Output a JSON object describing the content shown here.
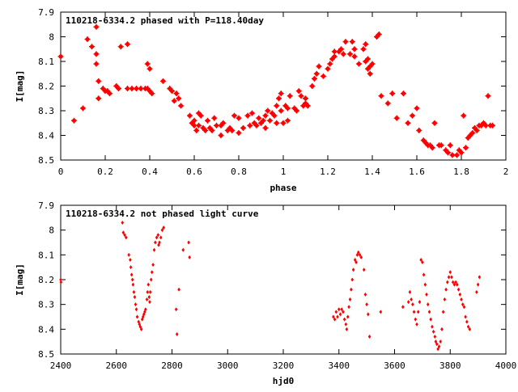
{
  "colors": {
    "marker": "#ff0000",
    "axis": "#000000",
    "background": "#ffffff"
  },
  "chart_data": [
    {
      "type": "scatter",
      "title": "110218-6334.2 phased with P=118.40day",
      "xlabel": "phase",
      "ylabel": "I[mag]",
      "xlim": [
        0,
        2
      ],
      "ylim": [
        8.5,
        7.9
      ],
      "y_inverted": true,
      "xticks": [
        "0",
        "0.2",
        "0.4",
        "0.6",
        "0.8",
        "1",
        "1.2",
        "1.4",
        "1.6",
        "1.8",
        "2"
      ],
      "yticks": [
        "7.9",
        "8",
        "8.1",
        "8.2",
        "8.3",
        "8.4",
        "8.5"
      ],
      "grid": false,
      "legend": "none",
      "marker": "filled-star",
      "points": [
        [
          0.0,
          8.08
        ],
        [
          0.06,
          8.34
        ],
        [
          0.1,
          8.29
        ],
        [
          0.12,
          8.01
        ],
        [
          0.14,
          8.04
        ],
        [
          0.16,
          7.96
        ],
        [
          0.16,
          8.07
        ],
        [
          0.16,
          8.11
        ],
        [
          0.17,
          8.18
        ],
        [
          0.17,
          8.25
        ],
        [
          0.19,
          8.21
        ],
        [
          0.2,
          8.22
        ],
        [
          0.21,
          8.22
        ],
        [
          0.22,
          8.23
        ],
        [
          0.25,
          8.2
        ],
        [
          0.26,
          8.21
        ],
        [
          0.27,
          8.04
        ],
        [
          0.3,
          8.21
        ],
        [
          0.3,
          8.03
        ],
        [
          0.32,
          8.21
        ],
        [
          0.34,
          8.21
        ],
        [
          0.36,
          8.21
        ],
        [
          0.38,
          8.21
        ],
        [
          0.39,
          8.21
        ],
        [
          0.39,
          8.11
        ],
        [
          0.4,
          8.13
        ],
        [
          0.4,
          8.22
        ],
        [
          0.41,
          8.23
        ],
        [
          0.46,
          8.18
        ],
        [
          0.49,
          8.21
        ],
        [
          0.5,
          8.22
        ],
        [
          0.51,
          8.26
        ],
        [
          0.52,
          8.23
        ],
        [
          0.53,
          8.25
        ],
        [
          0.54,
          8.28
        ],
        [
          0.58,
          8.32
        ],
        [
          0.59,
          8.35
        ],
        [
          0.6,
          8.34
        ],
        [
          0.6,
          8.36
        ],
        [
          0.61,
          8.38
        ],
        [
          0.62,
          8.31
        ],
        [
          0.62,
          8.36
        ],
        [
          0.63,
          8.32
        ],
        [
          0.64,
          8.37
        ],
        [
          0.65,
          8.38
        ],
        [
          0.66,
          8.34
        ],
        [
          0.67,
          8.37
        ],
        [
          0.68,
          8.38
        ],
        [
          0.69,
          8.33
        ],
        [
          0.7,
          8.36
        ],
        [
          0.72,
          8.36
        ],
        [
          0.72,
          8.4
        ],
        [
          0.73,
          8.35
        ],
        [
          0.75,
          8.38
        ],
        [
          0.76,
          8.37
        ],
        [
          0.77,
          8.38
        ],
        [
          0.78,
          8.32
        ],
        [
          0.8,
          8.33
        ],
        [
          0.8,
          8.39
        ],
        [
          0.82,
          8.37
        ],
        [
          0.84,
          8.32
        ],
        [
          0.85,
          8.36
        ],
        [
          0.86,
          8.31
        ],
        [
          0.87,
          8.35
        ],
        [
          0.88,
          8.36
        ],
        [
          0.89,
          8.33
        ],
        [
          0.9,
          8.35
        ],
        [
          0.91,
          8.34
        ],
        [
          0.92,
          8.32
        ],
        [
          0.92,
          8.37
        ],
        [
          0.93,
          8.3
        ],
        [
          0.94,
          8.34
        ],
        [
          0.95,
          8.31
        ],
        [
          0.96,
          8.32
        ],
        [
          0.97,
          8.28
        ],
        [
          0.97,
          8.35
        ],
        [
          0.98,
          8.25
        ],
        [
          0.99,
          8.23
        ],
        [
          0.99,
          8.3
        ],
        [
          1.0,
          8.35
        ],
        [
          1.01,
          8.28
        ],
        [
          1.02,
          8.29
        ],
        [
          1.02,
          8.34
        ],
        [
          1.03,
          8.24
        ],
        [
          1.05,
          8.29
        ],
        [
          1.06,
          8.3
        ],
        [
          1.07,
          8.22
        ],
        [
          1.08,
          8.24
        ],
        [
          1.09,
          8.28
        ],
        [
          1.1,
          8.25
        ],
        [
          1.1,
          8.27
        ],
        [
          1.11,
          8.28
        ],
        [
          1.13,
          8.2
        ],
        [
          1.14,
          8.17
        ],
        [
          1.15,
          8.15
        ],
        [
          1.16,
          8.12
        ],
        [
          1.18,
          8.16
        ],
        [
          1.2,
          8.13
        ],
        [
          1.21,
          8.11
        ],
        [
          1.22,
          8.09
        ],
        [
          1.23,
          8.06
        ],
        [
          1.23,
          8.08
        ],
        [
          1.25,
          8.06
        ],
        [
          1.26,
          8.05
        ],
        [
          1.27,
          8.07
        ],
        [
          1.28,
          8.02
        ],
        [
          1.3,
          8.07
        ],
        [
          1.31,
          8.02
        ],
        [
          1.32,
          8.08
        ],
        [
          1.32,
          8.05
        ],
        [
          1.34,
          8.11
        ],
        [
          1.36,
          8.05
        ],
        [
          1.37,
          8.1
        ],
        [
          1.37,
          8.03
        ],
        [
          1.38,
          8.13
        ],
        [
          1.38,
          8.09
        ],
        [
          1.39,
          8.12
        ],
        [
          1.39,
          8.15
        ],
        [
          1.4,
          8.11
        ],
        [
          1.42,
          8.0
        ],
        [
          1.43,
          7.99
        ],
        [
          1.44,
          8.24
        ],
        [
          1.47,
          8.27
        ],
        [
          1.49,
          8.23
        ],
        [
          1.51,
          8.33
        ],
        [
          1.54,
          8.23
        ],
        [
          1.56,
          8.35
        ],
        [
          1.58,
          8.32
        ],
        [
          1.6,
          8.29
        ],
        [
          1.61,
          8.38
        ],
        [
          1.63,
          8.42
        ],
        [
          1.64,
          8.43
        ],
        [
          1.65,
          8.44
        ],
        [
          1.66,
          8.44
        ],
        [
          1.67,
          8.45
        ],
        [
          1.68,
          8.35
        ],
        [
          1.7,
          8.44
        ],
        [
          1.71,
          8.44
        ],
        [
          1.73,
          8.46
        ],
        [
          1.74,
          8.47
        ],
        [
          1.75,
          8.44
        ],
        [
          1.76,
          8.48
        ],
        [
          1.78,
          8.48
        ],
        [
          1.79,
          8.46
        ],
        [
          1.8,
          8.47
        ],
        [
          1.81,
          8.32
        ],
        [
          1.82,
          8.45
        ],
        [
          1.83,
          8.41
        ],
        [
          1.84,
          8.4
        ],
        [
          1.85,
          8.39
        ],
        [
          1.86,
          8.37
        ],
        [
          1.87,
          8.38
        ],
        [
          1.88,
          8.36
        ],
        [
          1.89,
          8.36
        ],
        [
          1.9,
          8.35
        ],
        [
          1.91,
          8.36
        ],
        [
          1.92,
          8.24
        ],
        [
          1.93,
          8.36
        ],
        [
          1.94,
          8.36
        ]
      ]
    },
    {
      "type": "scatter",
      "title": "110218-6334.2 not phased light curve",
      "xlabel": "hjd0",
      "ylabel": "I[mag]",
      "xlim": [
        2400,
        4000
      ],
      "ylim": [
        8.5,
        7.9
      ],
      "y_inverted": true,
      "xticks": [
        "2400",
        "2600",
        "2800",
        "3000",
        "3200",
        "3400",
        "3600",
        "3800",
        "4000"
      ],
      "yticks": [
        "7.9",
        "8",
        "8.1",
        "8.2",
        "8.3",
        "8.4",
        "8.5"
      ],
      "grid": false,
      "legend": "none",
      "marker": "small-diamond",
      "points": [
        [
          2400,
          8.2
        ],
        [
          2401,
          8.21
        ],
        [
          2622,
          7.97
        ],
        [
          2625,
          8.01
        ],
        [
          2630,
          8.02
        ],
        [
          2635,
          8.03
        ],
        [
          2645,
          8.1
        ],
        [
          2650,
          8.12
        ],
        [
          2652,
          8.15
        ],
        [
          2655,
          8.18
        ],
        [
          2658,
          8.2
        ],
        [
          2660,
          8.22
        ],
        [
          2663,
          8.25
        ],
        [
          2666,
          8.27
        ],
        [
          2669,
          8.3
        ],
        [
          2672,
          8.32
        ],
        [
          2675,
          8.35
        ],
        [
          2680,
          8.37
        ],
        [
          2683,
          8.38
        ],
        [
          2686,
          8.39
        ],
        [
          2690,
          8.4
        ],
        [
          2693,
          8.36
        ],
        [
          2696,
          8.35
        ],
        [
          2699,
          8.34
        ],
        [
          2702,
          8.33
        ],
        [
          2705,
          8.32
        ],
        [
          2710,
          8.28
        ],
        [
          2712,
          8.25
        ],
        [
          2715,
          8.22
        ],
        [
          2718,
          8.27
        ],
        [
          2720,
          8.29
        ],
        [
          2722,
          8.25
        ],
        [
          2725,
          8.2
        ],
        [
          2728,
          8.17
        ],
        [
          2732,
          8.14
        ],
        [
          2736,
          8.08
        ],
        [
          2740,
          8.05
        ],
        [
          2745,
          8.03
        ],
        [
          2750,
          8.02
        ],
        [
          2752,
          8.06
        ],
        [
          2755,
          8.05
        ],
        [
          2760,
          8.03
        ],
        [
          2765,
          8.0
        ],
        [
          2770,
          7.99
        ],
        [
          2815,
          8.32
        ],
        [
          2818,
          8.42
        ],
        [
          2825,
          8.24
        ],
        [
          2840,
          8.08
        ],
        [
          2860,
          8.05
        ],
        [
          2863,
          8.11
        ],
        [
          3380,
          8.35
        ],
        [
          3385,
          8.36
        ],
        [
          3390,
          8.33
        ],
        [
          3395,
          8.35
        ],
        [
          3400,
          8.32
        ],
        [
          3405,
          8.34
        ],
        [
          3410,
          8.32
        ],
        [
          3415,
          8.33
        ],
        [
          3420,
          8.36
        ],
        [
          3425,
          8.38
        ],
        [
          3428,
          8.4
        ],
        [
          3432,
          8.35
        ],
        [
          3436,
          8.31
        ],
        [
          3440,
          8.28
        ],
        [
          3444,
          8.24
        ],
        [
          3448,
          8.2
        ],
        [
          3452,
          8.16
        ],
        [
          3458,
          8.12
        ],
        [
          3462,
          8.13
        ],
        [
          3466,
          8.1
        ],
        [
          3470,
          8.09
        ],
        [
          3475,
          8.1
        ],
        [
          3480,
          8.11
        ],
        [
          3490,
          8.16
        ],
        [
          3495,
          8.26
        ],
        [
          3500,
          8.3
        ],
        [
          3505,
          8.34
        ],
        [
          3510,
          8.43
        ],
        [
          3550,
          8.33
        ],
        [
          3630,
          8.31
        ],
        [
          3650,
          8.29
        ],
        [
          3655,
          8.25
        ],
        [
          3660,
          8.28
        ],
        [
          3665,
          8.3
        ],
        [
          3670,
          8.33
        ],
        [
          3675,
          8.36
        ],
        [
          3680,
          8.38
        ],
        [
          3685,
          8.33
        ],
        [
          3690,
          8.29
        ],
        [
          3695,
          8.12
        ],
        [
          3700,
          8.13
        ],
        [
          3705,
          8.18
        ],
        [
          3710,
          8.22
        ],
        [
          3715,
          8.26
        ],
        [
          3720,
          8.3
        ],
        [
          3725,
          8.33
        ],
        [
          3730,
          8.36
        ],
        [
          3735,
          8.39
        ],
        [
          3740,
          8.41
        ],
        [
          3745,
          8.43
        ],
        [
          3748,
          8.45
        ],
        [
          3752,
          8.46
        ],
        [
          3756,
          8.48
        ],
        [
          3760,
          8.47
        ],
        [
          3765,
          8.45
        ],
        [
          3770,
          8.4
        ],
        [
          3775,
          8.33
        ],
        [
          3780,
          8.28
        ],
        [
          3785,
          8.24
        ],
        [
          3790,
          8.21
        ],
        [
          3795,
          8.19
        ],
        [
          3800,
          8.17
        ],
        [
          3805,
          8.19
        ],
        [
          3810,
          8.21
        ],
        [
          3815,
          8.22
        ],
        [
          3820,
          8.21
        ],
        [
          3825,
          8.22
        ],
        [
          3830,
          8.24
        ],
        [
          3835,
          8.26
        ],
        [
          3840,
          8.28
        ],
        [
          3845,
          8.3
        ],
        [
          3850,
          8.31
        ],
        [
          3855,
          8.35
        ],
        [
          3860,
          8.37
        ],
        [
          3865,
          8.39
        ],
        [
          3870,
          8.4
        ],
        [
          3895,
          8.25
        ],
        [
          3900,
          8.22
        ],
        [
          3905,
          8.19
        ]
      ]
    }
  ]
}
